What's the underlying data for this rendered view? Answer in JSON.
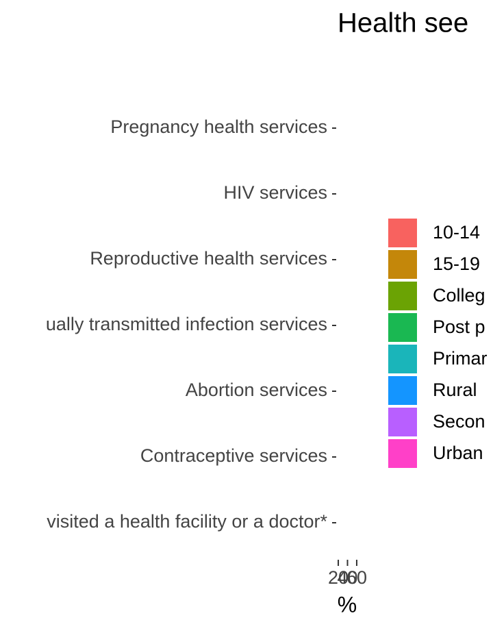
{
  "chart_data": {
    "type": "bar",
    "orientation": "horizontal",
    "title": "Health see",
    "categories": [
      "Pregnancy health services",
      "HIV services",
      "Reproductive health services",
      "ually transmitted infection services",
      "Abortion services",
      "Contraceptive services",
      "visited a health facility or a doctor*"
    ],
    "series": [
      {
        "name": "10-14",
        "color": "#F8625F"
      },
      {
        "name": "15-19",
        "color": "#C4870A"
      },
      {
        "name": "Colleg",
        "color": "#6BA304"
      },
      {
        "name": "Post p",
        "color": "#1AB852"
      },
      {
        "name": "Primar",
        "color": "#1AB5BA"
      },
      {
        "name": "Rural",
        "color": "#1495FF"
      },
      {
        "name": "Secon",
        "color": "#B85FFF"
      },
      {
        "name": "Urban",
        "color": "#FF40C8"
      }
    ],
    "xlabel": "%",
    "xlim": [
      14,
      66
    ],
    "xticks": [
      20,
      40,
      60
    ]
  }
}
